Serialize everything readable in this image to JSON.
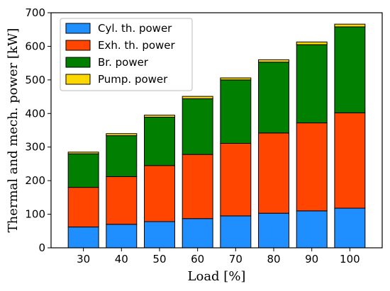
{
  "chart_data": {
    "type": "bar",
    "stacked": true,
    "categories": [
      "30",
      "40",
      "50",
      "60",
      "70",
      "80",
      "90",
      "100"
    ],
    "series": [
      {
        "name": "Cyl. th. power",
        "color": "#1f8fff",
        "values": [
          62,
          70,
          78,
          87,
          95,
          103,
          110,
          118
        ]
      },
      {
        "name": "Exh. th. power",
        "color": "#ff4500",
        "values": [
          118,
          142,
          167,
          191,
          216,
          239,
          262,
          284
        ]
      },
      {
        "name": "Br. power",
        "color": "#007f00",
        "values": [
          100,
          122,
          144,
          166,
          189,
          211,
          233,
          256
        ]
      },
      {
        "name": "Pump. power",
        "color": "#ffd700",
        "values": [
          5,
          6,
          6,
          7,
          6,
          7,
          8,
          8
        ]
      }
    ],
    "xlabel": "Load [%]",
    "ylabel": "Thermal and mech. power [kW]",
    "ylim": [
      0,
      700
    ],
    "yticks": [
      "0",
      "100",
      "200",
      "300",
      "400",
      "500",
      "600",
      "700"
    ],
    "grid": false,
    "legend_position": "top-left"
  }
}
